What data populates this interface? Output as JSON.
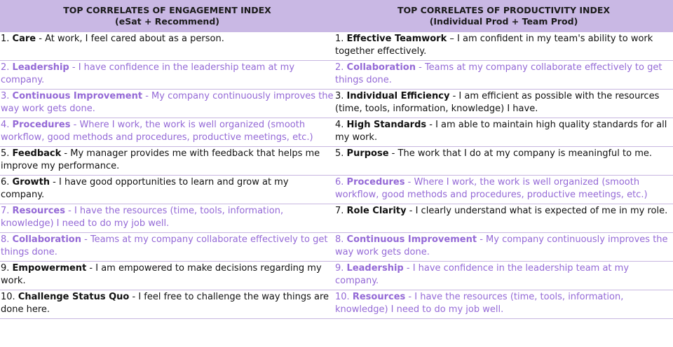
{
  "headers": [
    {
      "title": "TOP CORRELATES OF ENGAGEMENT INDEX",
      "subtitle": "(eSat + Recommend)"
    },
    {
      "title": "TOP CORRELATES OF PRODUCTIVITY INDEX",
      "subtitle": "(Individual Prod + Team Prod)"
    }
  ],
  "rows": [
    [
      {
        "num": "1.",
        "term": "Care",
        "sep": " - ",
        "desc": "At work, I feel cared about as a person.",
        "style": "black"
      },
      {
        "num": "1.",
        "term": "Effective Teamwork",
        "sep": " – ",
        "desc": "I am confident in my team's ability to work together effectively.",
        "style": "black"
      }
    ],
    [
      {
        "num": "2.",
        "term": "Leadership",
        "sep": " - ",
        "desc": "I have confidence in the leadership team at my company.",
        "style": "purple"
      },
      {
        "num": "2.",
        "term": "Collaboration",
        "sep": " - ",
        "desc": "Teams at my company collaborate effectively to get things done.",
        "style": "purple"
      }
    ],
    [
      {
        "num": "3.",
        "term": "Continuous Improvement",
        "sep": " - ",
        "desc": "My company continuously improves the way work gets done.",
        "style": "purple"
      },
      {
        "num": "3.",
        "term": "Individual Efficiency",
        "sep": " - ",
        "desc": "I am efficient as possible with the resources (time, tools, information, knowledge) I have.",
        "style": "black"
      }
    ],
    [
      {
        "num": "4.",
        "term": "Procedures",
        "sep": " - ",
        "desc": "Where I work, the work is well organized (smooth workflow, good methods and procedures, productive meetings, etc.)",
        "style": "purple"
      },
      {
        "num": "4.",
        "term": "High Standards",
        "sep": " - ",
        "desc": "I am able to maintain high quality standards for all my work.",
        "style": "black"
      }
    ],
    [
      {
        "num": "5.",
        "term": "Feedback",
        "sep": " - ",
        "desc": "My manager provides me with feedback that helps me improve my performance.",
        "style": "black"
      },
      {
        "num": "5.",
        "term": "Purpose",
        "sep": " - ",
        "desc": "The work that I do at my company is meaningful to me.",
        "style": "black"
      }
    ],
    [
      {
        "num": "6.",
        "term": "Growth",
        "sep": " - ",
        "desc": "I have good opportunities to learn and grow at my company.",
        "style": "black"
      },
      {
        "num": "6.",
        "term": "Procedures",
        "sep": " - ",
        "desc": "Where I work, the work is well organized (smooth workflow, good methods and procedures, productive meetings, etc.)",
        "style": "purple"
      }
    ],
    [
      {
        "num": "7.",
        "term": "Resources",
        "sep": " - ",
        "desc": "I have the resources (time, tools, information, knowledge) I need to do my job well.",
        "style": "purple"
      },
      {
        "num": "7.",
        "term": "Role Clarity",
        "sep": " - ",
        "desc": "I clearly understand what is expected of me in my role.",
        "style": "black"
      }
    ],
    [
      {
        "num": "8.",
        "term": "Collaboration",
        "sep": " - ",
        "desc": "Teams at my company collaborate effectively to get things done.",
        "style": "purple"
      },
      {
        "num": "8.",
        "term": "Continuous Improvement",
        "sep": " - ",
        "desc": "My company continuously improves the way work gets done.",
        "style": "purple"
      }
    ],
    [
      {
        "num": "9.",
        "term": "Empowerment",
        "sep": " - ",
        "desc": "I am empowered to make decisions regarding my work.",
        "style": "black"
      },
      {
        "num": "9.",
        "term": "Leadership",
        "sep": " - ",
        "desc": "I have confidence in the leadership team at my company.",
        "style": "purple"
      }
    ],
    [
      {
        "num": "10.",
        "term": "Challenge Status Quo",
        "sep": " - ",
        "desc": "I feel free to challenge the way things are done here.",
        "style": "black"
      },
      {
        "num": "10.",
        "term": "Resources",
        "sep": " - ",
        "desc": "I have the resources (time, tools, information, knowledge) I need to do my job well.",
        "style": "purple"
      }
    ]
  ]
}
